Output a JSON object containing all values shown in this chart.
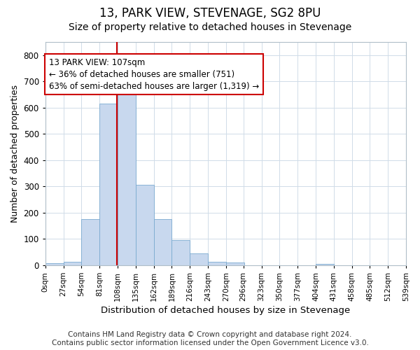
{
  "title1": "13, PARK VIEW, STEVENAGE, SG2 8PU",
  "title2": "Size of property relative to detached houses in Stevenage",
  "xlabel": "Distribution of detached houses by size in Stevenage",
  "ylabel": "Number of detached properties",
  "bin_edges": [
    0,
    27,
    54,
    81,
    108,
    135,
    162,
    189,
    216,
    243,
    270,
    296,
    323,
    350,
    377,
    404,
    431,
    458,
    485,
    512,
    539
  ],
  "bar_heights": [
    7,
    13,
    175,
    615,
    655,
    305,
    175,
    97,
    45,
    13,
    10,
    0,
    0,
    0,
    0,
    5,
    0,
    0,
    0,
    0
  ],
  "bar_color": "#c8d8ee",
  "bar_edge_color": "#7aaad0",
  "property_size": 107,
  "vline_color": "#cc0000",
  "annotation_line1": "13 PARK VIEW: 107sqm",
  "annotation_line2": "← 36% of detached houses are smaller (751)",
  "annotation_line3": "63% of semi-detached houses are larger (1,319) →",
  "annotation_box_color": "#ffffff",
  "annotation_box_edge": "#cc0000",
  "ylim": [
    0,
    850
  ],
  "yticks": [
    0,
    100,
    200,
    300,
    400,
    500,
    600,
    700,
    800
  ],
  "background_color": "#ffffff",
  "plot_bg_color": "#ffffff",
  "grid_color": "#d0dce8",
  "footer1": "Contains HM Land Registry data © Crown copyright and database right 2024.",
  "footer2": "Contains public sector information licensed under the Open Government Licence v3.0.",
  "title1_fontsize": 12,
  "title2_fontsize": 10,
  "xlabel_fontsize": 9.5,
  "ylabel_fontsize": 9,
  "footer_fontsize": 7.5,
  "tick_labels": [
    "0sqm",
    "27sqm",
    "54sqm",
    "81sqm",
    "108sqm",
    "135sqm",
    "162sqm",
    "189sqm",
    "216sqm",
    "243sqm",
    "270sqm",
    "296sqm",
    "323sqm",
    "350sqm",
    "377sqm",
    "404sqm",
    "431sqm",
    "458sqm",
    "485sqm",
    "512sqm",
    "539sqm"
  ]
}
